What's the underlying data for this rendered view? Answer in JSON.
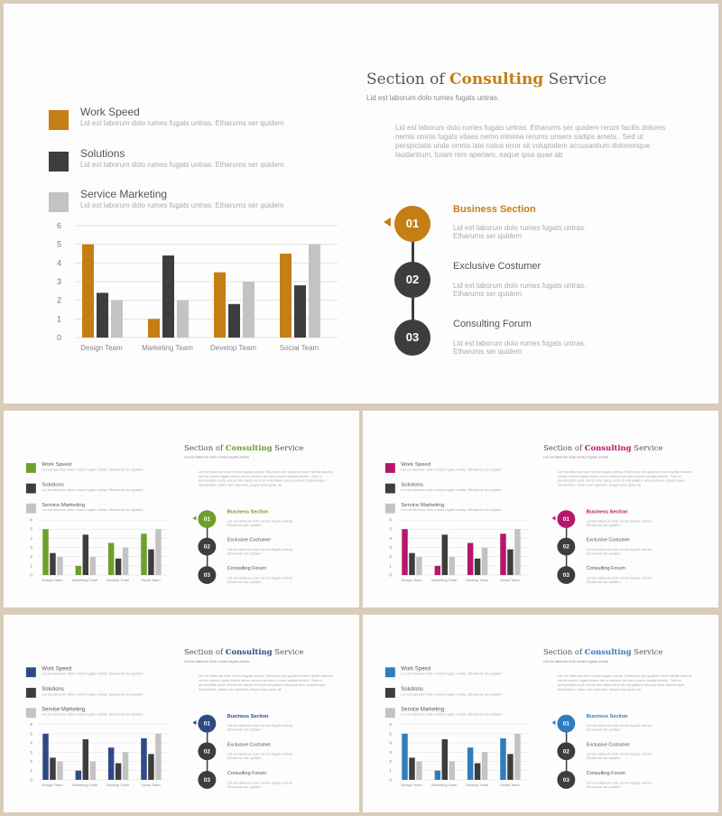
{
  "slides": [
    {
      "accent": "#c57e14",
      "title_pre": "Section of ",
      "title_hl": "Consulting",
      "title_post": " Service",
      "subtitle": "Lid est laborum dolo rumes fugats untras.",
      "body": "Lid est laborum dolo rumes fugats untras. Etharums ser quidem rerum facilis dolores nemis omnis fugats vitaes nemo minima rerums unsers sadips amets.. Sed ut perspiciatis unde omnis iste natus error sit voluptatem accusantium doloremque laudantium, totam rem aperiam, eaque ipsa quae ab",
      "legend": [
        {
          "label": "Work Speed",
          "desc": "Lid est laborum dolo rumes fugats untras. Etharums ser quidem"
        },
        {
          "label": "Solutions",
          "desc": "Lid est laborum dolo rumes fugats untras. Etharums ser quidem"
        },
        {
          "label": "Service Marketing",
          "desc": "Lid est laborum dolo rumes fugats untras. Etharums ser quidem"
        }
      ],
      "steps": [
        {
          "number": "01",
          "title": "Business  Section",
          "desc": "Lid est laborum dolo rumes fugats untras. Etharums ser quidem"
        },
        {
          "number": "02",
          "title": "Exclusive  Costumer",
          "desc": "Lid est laborum dolo rumes fugats untras. Etharums ser quidem"
        },
        {
          "number": "03",
          "title": "Consulting  Forum",
          "desc": "Lid est laborum dolo rumes fugats untras. Etharums ser quidem"
        }
      ]
    },
    {
      "accent": "#6e9f2c",
      "title_pre": "Section of ",
      "title_hl": "Consulting",
      "title_post": " Service",
      "subtitle": "Lid est laborum dolo rumes fugats untras.",
      "body": "Lid est laborum dolo rumes fugats untras. Etharums ser quidem rerum facilis dolores nemis omnis fugats vitaes nemo minima rerums unsers sadips amets.. Sed ut perspiciatis unde omnis iste natus error sit voluptatem accusantium doloremque laudantium, totam rem aperiam, eaque ipsa quae ab",
      "legend": [
        {
          "label": "Work Speed",
          "desc": "Lid est laborum dolo rumes fugats untras. Etharums ser quidem"
        },
        {
          "label": "Solutions",
          "desc": "Lid est laborum dolo rumes fugats untras. Etharums ser quidem"
        },
        {
          "label": "Service Marketing",
          "desc": "Lid est laborum dolo rumes fugats untras. Etharums ser quidem"
        }
      ],
      "steps": [
        {
          "number": "01",
          "title": "Business  Section",
          "desc": "Lid est laborum dolo rumes fugats untras. Etharums ser quidem"
        },
        {
          "number": "02",
          "title": "Exclusive  Costumer",
          "desc": "Lid est laborum dolo rumes fugats untras. Etharums ser quidem"
        },
        {
          "number": "03",
          "title": "Consulting  Forum",
          "desc": "Lid est laborum dolo rumes fugats untras. Etharums ser quidem"
        }
      ]
    },
    {
      "accent": "#b5176b",
      "title_pre": "Section of ",
      "title_hl": "Consulting",
      "title_post": " Service",
      "subtitle": "Lid est laborum dolo rumes fugats untras.",
      "body": "Lid est laborum dolo rumes fugats untras. Etharums ser quidem rerum facilis dolores nemis omnis fugats vitaes nemo minima rerums unsers sadips amets.. Sed ut perspiciatis unde omnis iste natus error sit voluptatem accusantium doloremque laudantium, totam rem aperiam, eaque ipsa quae ab",
      "legend": [
        {
          "label": "Work Speed",
          "desc": "Lid est laborum dolo rumes fugats untras. Etharums ser quidem"
        },
        {
          "label": "Solutions",
          "desc": "Lid est laborum dolo rumes fugats untras. Etharums ser quidem"
        },
        {
          "label": "Service Marketing",
          "desc": "Lid est laborum dolo rumes fugats untras. Etharums ser quidem"
        }
      ],
      "steps": [
        {
          "number": "01",
          "title": "Business  Section",
          "desc": "Lid est laborum dolo rumes fugats untras. Etharums ser quidem"
        },
        {
          "number": "02",
          "title": "Exclusive  Costumer",
          "desc": "Lid est laborum dolo rumes fugats untras. Etharums ser quidem"
        },
        {
          "number": "03",
          "title": "Consulting  Forum",
          "desc": "Lid est laborum dolo rumes fugats untras. Etharums ser quidem"
        }
      ]
    },
    {
      "accent": "#2e4a86",
      "title_pre": "Section of ",
      "title_hl": "Consulting",
      "title_post": " Service",
      "subtitle": "Lid est laborum dolo rumes fugats untras.",
      "body": "Lid est laborum dolo rumes fugats untras. Etharums ser quidem rerum facilis dolores nemis omnis fugats vitaes nemo minima rerums unsers sadips amets.. Sed ut perspiciatis unde omnis iste natus error sit voluptatem accusantium doloremque laudantium, totam rem aperiam, eaque ipsa quae ab",
      "legend": [
        {
          "label": "Work Speed",
          "desc": "Lid est laborum dolo rumes fugats untras. Etharums ser quidem"
        },
        {
          "label": "Solutions",
          "desc": "Lid est laborum dolo rumes fugats untras. Etharums ser quidem"
        },
        {
          "label": "Service Marketing",
          "desc": "Lid est laborum dolo rumes fugats untras. Etharums ser quidem"
        }
      ],
      "steps": [
        {
          "number": "01",
          "title": "Business  Section",
          "desc": "Lid est laborum dolo rumes fugats untras. Etharums ser quidem"
        },
        {
          "number": "02",
          "title": "Exclusive  Costumer",
          "desc": "Lid est laborum dolo rumes fugats untras. Etharums ser quidem"
        },
        {
          "number": "03",
          "title": "Consulting  Forum",
          "desc": "Lid est laborum dolo rumes fugats untras. Etharums ser quidem"
        }
      ]
    },
    {
      "accent": "#2f7dbd",
      "title_pre": "Section of ",
      "title_hl": "Consulting",
      "title_post": " Service",
      "subtitle": "Lid est laborum dolo rumes fugats untras.",
      "body": "Lid est laborum dolo rumes fugats untras. Etharums ser quidem rerum facilis dolores nemis omnis fugats vitaes nemo minima rerums unsers sadips amets.. Sed ut perspiciatis unde omnis iste natus error sit voluptatem accusantium doloremque laudantium, totam rem aperiam, eaque ipsa quae ab",
      "legend": [
        {
          "label": "Work Speed",
          "desc": "Lid est laborum dolo rumes fugats untras. Etharums ser quidem"
        },
        {
          "label": "Solutions",
          "desc": "Lid est laborum dolo rumes fugats untras. Etharums ser quidem"
        },
        {
          "label": "Service Marketing",
          "desc": "Lid est laborum dolo rumes fugats untras. Etharums ser quidem"
        }
      ],
      "steps": [
        {
          "number": "01",
          "title": "Business  Section",
          "desc": "Lid est laborum dolo rumes fugats untras. Etharums ser quidem"
        },
        {
          "number": "02",
          "title": "Exclusive  Costumer",
          "desc": "Lid est laborum dolo rumes fugats untras. Etharums ser quidem"
        },
        {
          "number": "03",
          "title": "Consulting  Forum",
          "desc": "Lid est laborum dolo rumes fugats untras. Etharums ser quidem"
        }
      ]
    }
  ],
  "chart_data": {
    "type": "bar",
    "categories": [
      "Design Team",
      "Marketing Team",
      "Develop Team",
      "Social Team"
    ],
    "series": [
      {
        "name": "Work Speed",
        "values": [
          5,
          1,
          3.5,
          4.5
        ]
      },
      {
        "name": "Solutions",
        "values": [
          2.4,
          4.4,
          1.8,
          2.8
        ]
      },
      {
        "name": "Service Marketing",
        "values": [
          2,
          2,
          3,
          5
        ]
      }
    ],
    "ylim": [
      0,
      6
    ],
    "yticks": [
      0,
      1,
      2,
      3,
      4,
      5,
      6
    ],
    "grid": true,
    "series_colors": [
      "accent",
      "#3d3d3d",
      "#c3c3c3"
    ]
  }
}
